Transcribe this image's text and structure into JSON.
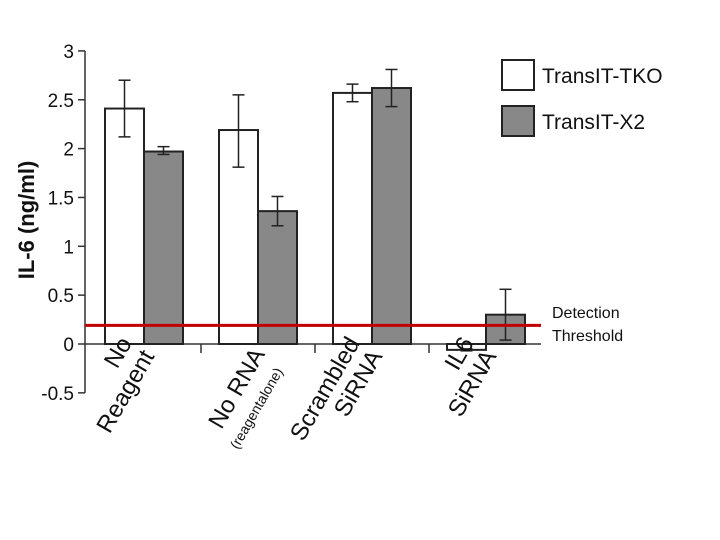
{
  "chart_data": {
    "type": "bar",
    "title": "",
    "xlabel": "",
    "ylabel": "IL-6 (ng/ml)",
    "ylim": [
      -0.5,
      3
    ],
    "yticks": [
      "3",
      "2.5",
      "2",
      "1.5",
      "1",
      "0.5",
      "0",
      "-0.5"
    ],
    "ytick_values": [
      3,
      2.5,
      2,
      1.5,
      1,
      0.5,
      0,
      -0.5
    ],
    "grid": false,
    "legend_placement": "top-right",
    "categories": [
      {
        "lines": [
          "No",
          "Reagent"
        ],
        "sub": ""
      },
      {
        "lines": [
          "No RNA"
        ],
        "sub": "(reagentalone)"
      },
      {
        "lines": [
          "Scrambled",
          "SiRNA"
        ],
        "sub": ""
      },
      {
        "lines": [
          "IL6",
          "SiRNA"
        ],
        "sub": ""
      }
    ],
    "series": [
      {
        "name": "TransIT-TKO",
        "color": "#ffffff",
        "values": [
          2.41,
          2.19,
          2.57,
          -0.06
        ],
        "err_low": [
          2.12,
          1.81,
          2.48,
          -0.07
        ],
        "err_high": [
          2.7,
          2.55,
          2.66,
          -0.05
        ]
      },
      {
        "name": "TransIT-X2",
        "color": "#888888",
        "values": [
          1.97,
          1.36,
          2.62,
          0.3
        ],
        "err_low": [
          1.94,
          1.21,
          2.43,
          0.04
        ],
        "err_high": [
          2.02,
          1.51,
          2.81,
          0.56
        ]
      }
    ],
    "threshold": {
      "value": 0.19,
      "color": "#c00000",
      "label_lines": [
        "Detection",
        "Threshold"
      ]
    }
  }
}
